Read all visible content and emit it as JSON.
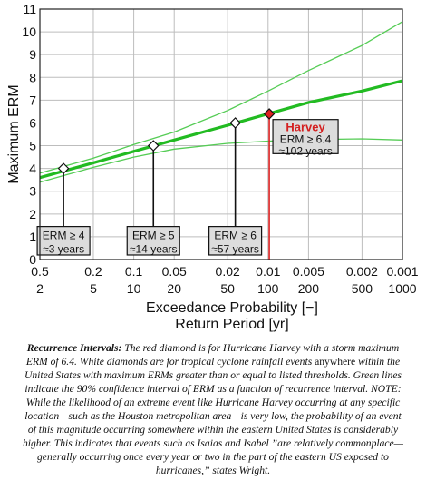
{
  "chart_data": {
    "type": "line",
    "y_axis": {
      "label": "Maximum ERM",
      "range": [
        0,
        11
      ],
      "ticks": [
        0,
        1,
        2,
        3,
        4,
        5,
        6,
        7,
        8,
        9,
        10,
        11
      ]
    },
    "x_axis": {
      "scale": "log",
      "label_top": "Exceedance Probability [−]",
      "label_bottom": "Return Period [yr]",
      "probability_range": [
        0.5,
        0.001
      ],
      "probability_ticks": [
        "0.5",
        "0.2",
        "0.1",
        "0.05",
        "0.02",
        "0.01",
        "0.005",
        "0.002",
        "0.001"
      ],
      "return_period_ticks": [
        "2",
        "5",
        "10",
        "20",
        "50",
        "100",
        "200",
        "500",
        "1000"
      ],
      "tick_values_years": [
        2,
        5,
        10,
        20,
        50,
        100,
        200,
        500,
        1000
      ]
    },
    "grid": true,
    "series": [
      {
        "role": "best-fit",
        "color": "#22bb22",
        "x": [
          2,
          5,
          10,
          20,
          50,
          100,
          200,
          500,
          1000
        ],
        "y": [
          3.6,
          4.25,
          4.75,
          5.25,
          5.9,
          6.4,
          6.9,
          7.4,
          7.85
        ]
      },
      {
        "role": "confidence-upper",
        "color": "#55cc55",
        "x": [
          2,
          5,
          10,
          20,
          50,
          100,
          200,
          500,
          1000
        ],
        "y": [
          3.8,
          4.45,
          5.05,
          5.6,
          6.55,
          7.4,
          8.3,
          9.4,
          10.45
        ]
      },
      {
        "role": "confidence-lower",
        "color": "#55cc55",
        "x": [
          2,
          5,
          10,
          20,
          50,
          100,
          200,
          500,
          1000
        ],
        "y": [
          3.4,
          4.05,
          4.5,
          4.85,
          5.1,
          5.2,
          5.27,
          5.3,
          5.25
        ]
      }
    ],
    "markers": [
      {
        "x": 3,
        "y": 4,
        "color": "#ffffff",
        "label_line1": "ERM ≥ 4",
        "label_line2": "≈3 years",
        "label_x": 3
      },
      {
        "x": 14,
        "y": 5,
        "color": "#ffffff",
        "label_line1": "ERM ≥ 5",
        "label_line2": "≈14 years",
        "label_x": 14
      },
      {
        "x": 57,
        "y": 6,
        "color": "#ffffff",
        "label_line1": "ERM ≥ 6",
        "label_line2": "≈57 years",
        "label_x": 57
      },
      {
        "x": 102,
        "y": 6.4,
        "color": "#dd2222",
        "title": "Harvey",
        "label_line1": "ERM ≥ 6.4",
        "label_line2": "≈102 years",
        "label_x": 102
      }
    ],
    "marker_box_y_top": 1.45,
    "marker_box_y_bottom": 0.2,
    "harvey_box_y_top": 6.15,
    "harvey_box_y_bottom": 4.65
  },
  "caption": {
    "lead": "Recurrence Intervals:",
    "part1": " The red diamond is for Hurricane Harvey with a storm maximum ERM of 6.4. White diamonds are for tropical cyclone rainfall events ",
    "strong": "anywhere",
    "part2": " within the United States with maximum ERMs greater than or equal to listed thresholds. Green lines indicate the 90% confidence interval of ERM as a function of recurrence interval. NOTE: While the likelihood of an extreme event like Hurricane Harvey occurring at any specific location—such as the Houston metropolitan area—is very low, the probability of an event of this magnitude occurring somewhere within the eastern United States is considerably higher. This indicates that events such as Isaias and Isabel ”are relatively commonplace—generally occurring once every year or two in the part of the eastern US exposed to hurricanes,” states Wright."
  }
}
